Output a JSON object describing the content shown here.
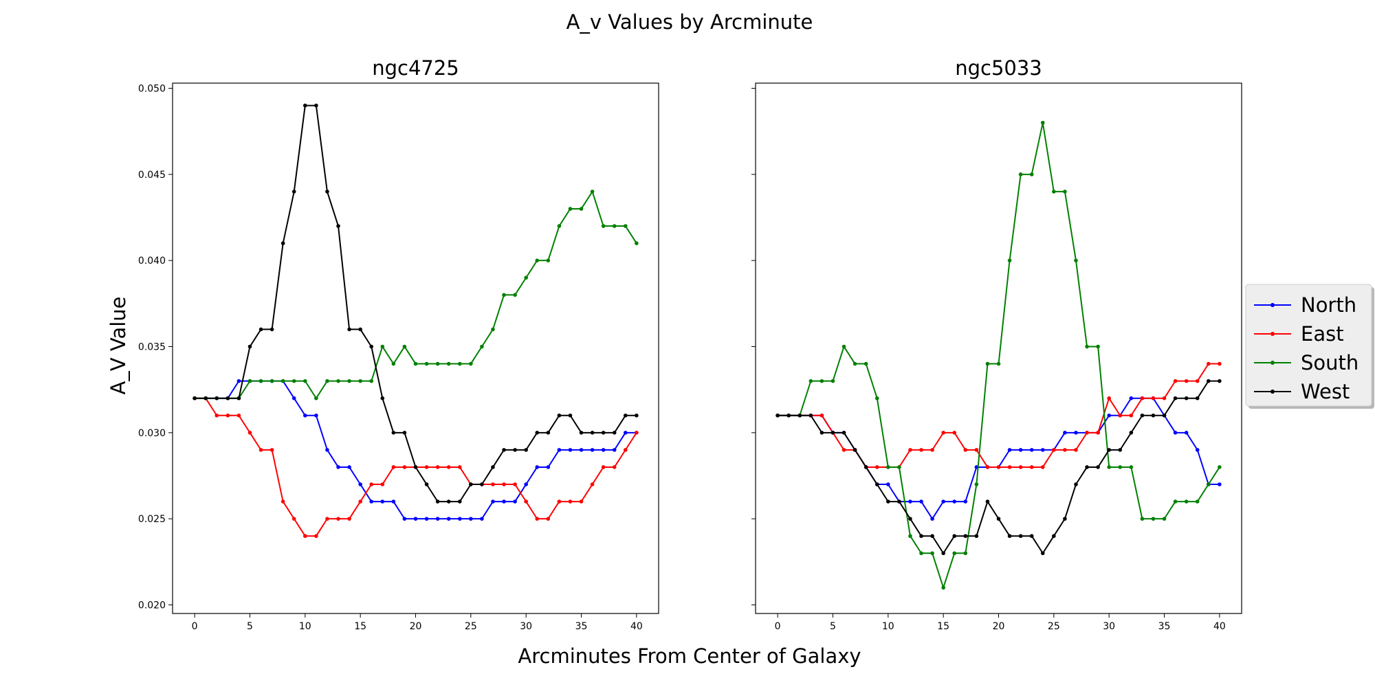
{
  "figure": {
    "title": "A_v Values by Arcminute",
    "xlabel": "Arcminutes From Center of Galaxy",
    "ylabel": "A_V Value"
  },
  "legend": {
    "placement": "right",
    "entries": [
      {
        "name": "North",
        "color": "#0000ff"
      },
      {
        "name": "East",
        "color": "#ff0000"
      },
      {
        "name": "South",
        "color": "#008000"
      },
      {
        "name": "West",
        "color": "#000000"
      }
    ]
  },
  "chart_data": [
    {
      "type": "line",
      "title": "ngc4725",
      "x": [
        0,
        1,
        2,
        3,
        4,
        5,
        6,
        7,
        8,
        9,
        10,
        11,
        12,
        13,
        14,
        15,
        16,
        17,
        18,
        19,
        20,
        21,
        22,
        23,
        24,
        25,
        26,
        27,
        28,
        29,
        30,
        31,
        32,
        33,
        34,
        35,
        36,
        37,
        38,
        39,
        40
      ],
      "xlim": [
        -2,
        42
      ],
      "ylim": [
        0.0195,
        0.0503
      ],
      "xticks": [
        0,
        5,
        10,
        15,
        20,
        25,
        30,
        35,
        40
      ],
      "yticks": [
        "0.020",
        "0.025",
        "0.030",
        "0.035",
        "0.040",
        "0.045",
        "0.050"
      ],
      "series": [
        {
          "name": "North",
          "color": "#0000ff",
          "values": [
            0.032,
            0.032,
            0.032,
            0.032,
            0.033,
            0.033,
            0.033,
            0.033,
            0.033,
            0.032,
            0.031,
            0.031,
            0.029,
            0.028,
            0.028,
            0.027,
            0.026,
            0.026,
            0.026,
            0.025,
            0.025,
            0.025,
            0.025,
            0.025,
            0.025,
            0.025,
            0.025,
            0.026,
            0.026,
            0.026,
            0.027,
            0.028,
            0.028,
            0.029,
            0.029,
            0.029,
            0.029,
            0.029,
            0.029,
            0.03,
            0.03
          ]
        },
        {
          "name": "East",
          "color": "#ff0000",
          "values": [
            0.032,
            0.032,
            0.031,
            0.031,
            0.031,
            0.03,
            0.029,
            0.029,
            0.026,
            0.025,
            0.024,
            0.024,
            0.025,
            0.025,
            0.025,
            0.026,
            0.027,
            0.027,
            0.028,
            0.028,
            0.028,
            0.028,
            0.028,
            0.028,
            0.028,
            0.027,
            0.027,
            0.027,
            0.027,
            0.027,
            0.026,
            0.025,
            0.025,
            0.026,
            0.026,
            0.026,
            0.027,
            0.028,
            0.028,
            0.029,
            0.03
          ]
        },
        {
          "name": "South",
          "color": "#008000",
          "values": [
            0.032,
            0.032,
            0.032,
            0.032,
            0.032,
            0.033,
            0.033,
            0.033,
            0.033,
            0.033,
            0.033,
            0.032,
            0.033,
            0.033,
            0.033,
            0.033,
            0.033,
            0.035,
            0.034,
            0.035,
            0.034,
            0.034,
            0.034,
            0.034,
            0.034,
            0.034,
            0.035,
            0.036,
            0.038,
            0.038,
            0.039,
            0.04,
            0.04,
            0.042,
            0.043,
            0.043,
            0.044,
            0.042,
            0.042,
            0.042,
            0.041
          ]
        },
        {
          "name": "West",
          "color": "#000000",
          "values": [
            0.032,
            0.032,
            0.032,
            0.032,
            0.032,
            0.035,
            0.036,
            0.036,
            0.041,
            0.044,
            0.049,
            0.049,
            0.044,
            0.042,
            0.036,
            0.036,
            0.035,
            0.032,
            0.03,
            0.03,
            0.028,
            0.027,
            0.026,
            0.026,
            0.026,
            0.027,
            0.027,
            0.028,
            0.029,
            0.029,
            0.029,
            0.03,
            0.03,
            0.031,
            0.031,
            0.03,
            0.03,
            0.03,
            0.03,
            0.031,
            0.031
          ]
        }
      ]
    },
    {
      "type": "line",
      "title": "ngc5033",
      "x": [
        0,
        1,
        2,
        3,
        4,
        5,
        6,
        7,
        8,
        9,
        10,
        11,
        12,
        13,
        14,
        15,
        16,
        17,
        18,
        19,
        20,
        21,
        22,
        23,
        24,
        25,
        26,
        27,
        28,
        29,
        30,
        31,
        32,
        33,
        34,
        35,
        36,
        37,
        38,
        39,
        40
      ],
      "xlim": [
        -2,
        42
      ],
      "ylim": [
        0.0195,
        0.0503
      ],
      "xticks": [
        0,
        5,
        10,
        15,
        20,
        25,
        30,
        35,
        40
      ],
      "yticks": [
        "0.020",
        "0.025",
        "0.030",
        "0.035",
        "0.040",
        "0.045",
        "0.050"
      ],
      "series": [
        {
          "name": "North",
          "color": "#0000ff",
          "values": [
            0.031,
            0.031,
            0.031,
            0.031,
            0.031,
            0.03,
            0.03,
            0.029,
            0.028,
            0.027,
            0.027,
            0.026,
            0.026,
            0.026,
            0.025,
            0.026,
            0.026,
            0.026,
            0.028,
            0.028,
            0.028,
            0.029,
            0.029,
            0.029,
            0.029,
            0.029,
            0.03,
            0.03,
            0.03,
            0.03,
            0.031,
            0.031,
            0.032,
            0.032,
            0.032,
            0.031,
            0.03,
            0.03,
            0.029,
            0.027,
            0.027
          ]
        },
        {
          "name": "East",
          "color": "#ff0000",
          "values": [
            0.031,
            0.031,
            0.031,
            0.031,
            0.031,
            0.03,
            0.029,
            0.029,
            0.028,
            0.028,
            0.028,
            0.028,
            0.029,
            0.029,
            0.029,
            0.03,
            0.03,
            0.029,
            0.029,
            0.028,
            0.028,
            0.028,
            0.028,
            0.028,
            0.028,
            0.029,
            0.029,
            0.029,
            0.03,
            0.03,
            0.032,
            0.031,
            0.031,
            0.032,
            0.032,
            0.032,
            0.033,
            0.033,
            0.033,
            0.034,
            0.034
          ]
        },
        {
          "name": "South",
          "color": "#008000",
          "values": [
            0.031,
            0.031,
            0.031,
            0.033,
            0.033,
            0.033,
            0.035,
            0.034,
            0.034,
            0.032,
            0.028,
            0.028,
            0.024,
            0.023,
            0.023,
            0.021,
            0.023,
            0.023,
            0.027,
            0.034,
            0.034,
            0.04,
            0.045,
            0.045,
            0.048,
            0.044,
            0.044,
            0.04,
            0.035,
            0.035,
            0.028,
            0.028,
            0.028,
            0.025,
            0.025,
            0.025,
            0.026,
            0.026,
            0.026,
            0.027,
            0.028
          ]
        },
        {
          "name": "West",
          "color": "#000000",
          "values": [
            0.031,
            0.031,
            0.031,
            0.031,
            0.03,
            0.03,
            0.03,
            0.029,
            0.028,
            0.027,
            0.026,
            0.026,
            0.025,
            0.024,
            0.024,
            0.023,
            0.024,
            0.024,
            0.024,
            0.026,
            0.025,
            0.024,
            0.024,
            0.024,
            0.023,
            0.024,
            0.025,
            0.027,
            0.028,
            0.028,
            0.029,
            0.029,
            0.03,
            0.031,
            0.031,
            0.031,
            0.032,
            0.032,
            0.032,
            0.033,
            0.033
          ]
        }
      ]
    }
  ]
}
